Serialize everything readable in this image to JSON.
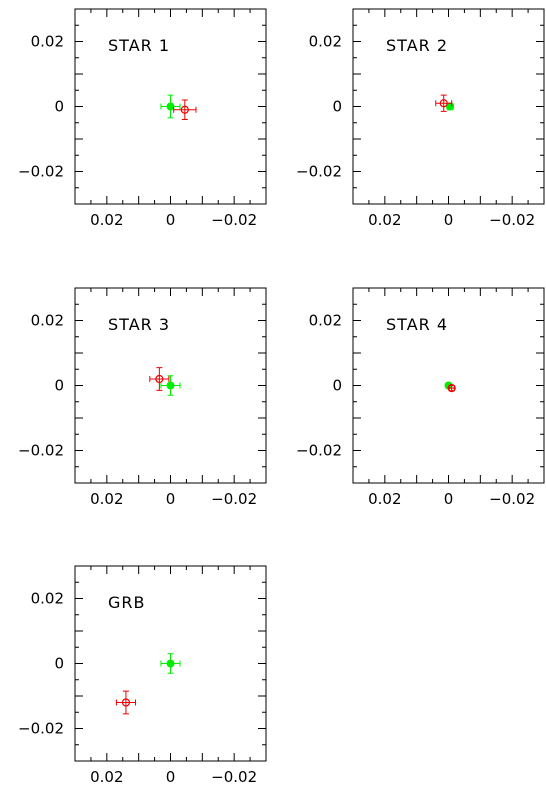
{
  "chart_data": [
    {
      "type": "scatter",
      "label": "STAR 1",
      "xlim": [
        0.03,
        -0.03
      ],
      "ylim": [
        -0.03,
        0.03
      ],
      "xticks": [
        0.02,
        0,
        -0.02
      ],
      "xtick_labels": [
        "0.02",
        "0",
        "−0.02"
      ],
      "yticks": [
        0.02,
        0,
        -0.02
      ],
      "ytick_labels": [
        "0.02",
        "0",
        "−0.02"
      ],
      "grid": false,
      "series": [
        {
          "color": "#00ee00",
          "marker": "filled-circle",
          "points": [
            {
              "x": 0.0,
              "y": 0.0,
              "xerr": 0.003,
              "yerr": 0.0035
            }
          ]
        },
        {
          "color": "#ee0000",
          "marker": "open-circle",
          "points": [
            {
              "x": -0.0045,
              "y": -0.001,
              "xerr": 0.0035,
              "yerr": 0.003
            }
          ]
        }
      ]
    },
    {
      "type": "scatter",
      "label": "STAR 2",
      "xlim": [
        0.03,
        -0.03
      ],
      "ylim": [
        -0.03,
        0.03
      ],
      "xticks": [
        0.02,
        0,
        -0.02
      ],
      "xtick_labels": [
        "0.02",
        "0",
        "−0.02"
      ],
      "yticks": [
        0.02,
        0,
        -0.02
      ],
      "ytick_labels": [
        "0.02",
        "0",
        "−0.02"
      ],
      "grid": false,
      "series": [
        {
          "color": "#00ee00",
          "marker": "filled-circle",
          "points": [
            {
              "x": -0.0005,
              "y": 0.0,
              "xerr": 0.001,
              "yerr": 0.001
            }
          ]
        },
        {
          "color": "#ee0000",
          "marker": "open-circle",
          "points": [
            {
              "x": 0.0015,
              "y": 0.001,
              "xerr": 0.0025,
              "yerr": 0.0025
            }
          ]
        }
      ]
    },
    {
      "type": "scatter",
      "label": "STAR 3",
      "xlim": [
        0.03,
        -0.03
      ],
      "ylim": [
        -0.03,
        0.03
      ],
      "xticks": [
        0.02,
        0,
        -0.02
      ],
      "xtick_labels": [
        "0.02",
        "0",
        "−0.02"
      ],
      "yticks": [
        0.02,
        0,
        -0.02
      ],
      "ytick_labels": [
        "0.02",
        "0",
        "−0.02"
      ],
      "grid": false,
      "series": [
        {
          "color": "#00ee00",
          "marker": "filled-circle",
          "points": [
            {
              "x": 0.0,
              "y": 0.0,
              "xerr": 0.003,
              "yerr": 0.003
            }
          ]
        },
        {
          "color": "#ee0000",
          "marker": "open-circle",
          "points": [
            {
              "x": 0.0035,
              "y": 0.002,
              "xerr": 0.003,
              "yerr": 0.0035
            }
          ]
        }
      ]
    },
    {
      "type": "scatter",
      "label": "STAR 4",
      "xlim": [
        0.03,
        -0.03
      ],
      "ylim": [
        -0.03,
        0.03
      ],
      "xticks": [
        0.02,
        0,
        -0.02
      ],
      "xtick_labels": [
        "0.02",
        "0",
        "−0.02"
      ],
      "yticks": [
        0.02,
        0,
        -0.02
      ],
      "ytick_labels": [
        "0.02",
        "0",
        "−0.02"
      ],
      "grid": false,
      "series": [
        {
          "color": "#00ee00",
          "marker": "filled-circle",
          "points": [
            {
              "x": 0.0,
              "y": 0.0,
              "xerr": 0.0008,
              "yerr": 0.0008
            }
          ]
        },
        {
          "color": "#ee0000",
          "marker": "open-circle",
          "points": [
            {
              "x": -0.001,
              "y": -0.0008,
              "xerr": 0.0008,
              "yerr": 0.0008
            }
          ]
        }
      ]
    },
    {
      "type": "scatter",
      "label": "GRB",
      "xlim": [
        0.03,
        -0.03
      ],
      "ylim": [
        -0.03,
        0.03
      ],
      "xticks": [
        0.02,
        0,
        -0.02
      ],
      "xtick_labels": [
        "0.02",
        "0",
        "−0.02"
      ],
      "yticks": [
        0.02,
        0,
        -0.02
      ],
      "ytick_labels": [
        "0.02",
        "0",
        "−0.02"
      ],
      "grid": false,
      "series": [
        {
          "color": "#00ee00",
          "marker": "filled-circle",
          "points": [
            {
              "x": 0.0,
              "y": 0.0,
              "xerr": 0.003,
              "yerr": 0.003
            }
          ]
        },
        {
          "color": "#ee0000",
          "marker": "open-circle",
          "points": [
            {
              "x": 0.014,
              "y": -0.012,
              "xerr": 0.003,
              "yerr": 0.0035
            }
          ]
        }
      ]
    }
  ]
}
